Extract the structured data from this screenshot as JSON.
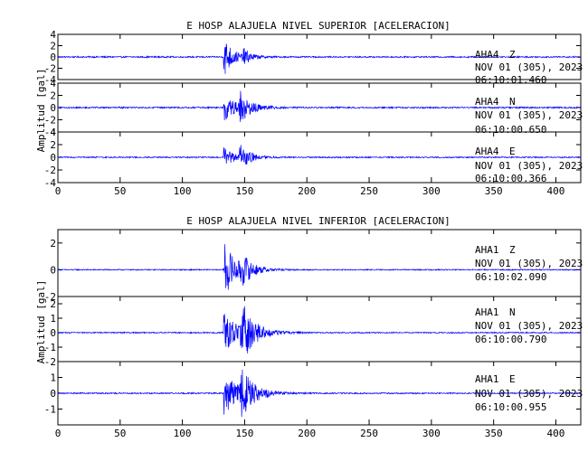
{
  "chart_data": [
    {
      "type": "line",
      "title": "E HOSP ALAJUELA NIVEL SUPERIOR [ACELERACION]",
      "ylabel": "Amplitud [gal]",
      "xlim": [
        0,
        420
      ],
      "xticks": [
        0,
        50,
        100,
        150,
        200,
        250,
        300,
        350,
        400
      ],
      "series": [
        {
          "name": "AHA4 Z",
          "station": "AHA4",
          "component": "Z",
          "date": "NOV 01 (305), 2023",
          "time": "06:10:01.460",
          "ylim": [
            -4,
            4
          ],
          "yticks": [
            -4,
            -2,
            0,
            2,
            4
          ],
          "onset": 133,
          "peak": 3.8,
          "noise": 0.12,
          "decay": 7,
          "second_onset": 148,
          "second_peak": 1.6
        },
        {
          "name": "AHA4 N",
          "station": "AHA4",
          "component": "N",
          "date": "NOV 01 (305), 2023",
          "time": "06:10:00.650",
          "ylim": [
            -4,
            4
          ],
          "yticks": [
            -4,
            -2,
            0,
            2,
            4
          ],
          "onset": 133,
          "peak": 2.3,
          "noise": 0.12,
          "decay": 10,
          "second_onset": 145,
          "second_peak": 2.6
        },
        {
          "name": "AHA4 E",
          "station": "AHA4",
          "component": "E",
          "date": "NOV 01 (305), 2023",
          "time": "06:10:00.366",
          "ylim": [
            -4,
            4
          ],
          "yticks": [
            -4,
            -2,
            0,
            2,
            4
          ],
          "onset": 133,
          "peak": 1.5,
          "noise": 0.1,
          "decay": 9,
          "second_onset": 145,
          "second_peak": 2.4
        }
      ]
    },
    {
      "type": "line",
      "title": "E HOSP ALAJUELA NIVEL INFERIOR [ACELERACION]",
      "ylabel": "Amplitud [gal]",
      "xlim": [
        0,
        420
      ],
      "xticks": [
        0,
        50,
        100,
        150,
        200,
        250,
        300,
        350,
        400
      ],
      "series": [
        {
          "name": "AHA1 Z",
          "station": "AHA1",
          "component": "Z",
          "date": "NOV 01 (305), 2023",
          "time": "06:10:02.090",
          "ylim": [
            -2,
            3
          ],
          "yticks": [
            -2,
            0,
            2
          ],
          "onset": 133,
          "peak": 2.2,
          "noise": 0.04,
          "decay": 10,
          "second_onset": 146,
          "second_peak": 1.1
        },
        {
          "name": "AHA1 N",
          "station": "AHA1",
          "component": "N",
          "date": "NOV 01 (305), 2023",
          "time": "06:10:00.790",
          "ylim": [
            -2,
            2.5
          ],
          "yticks": [
            -2,
            -1,
            0,
            1,
            2
          ],
          "onset": 133,
          "peak": 1.4,
          "noise": 0.04,
          "decay": 12,
          "second_onset": 146,
          "second_peak": 2.2
        },
        {
          "name": "AHA1 E",
          "station": "AHA1",
          "component": "E",
          "date": "NOV 01 (305), 2023",
          "time": "06:10:00.955",
          "ylim": [
            -2,
            2
          ],
          "yticks": [
            -1,
            0,
            1
          ],
          "onset": 133,
          "peak": 1.4,
          "noise": 0.04,
          "decay": 12,
          "second_onset": 146,
          "second_peak": 1.5
        }
      ]
    }
  ]
}
